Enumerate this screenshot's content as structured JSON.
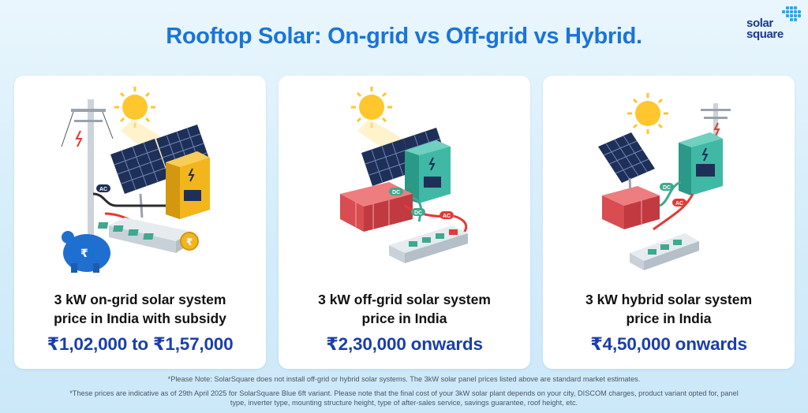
{
  "title": "Rooftop Solar: On-grid vs Off-grid vs Hybrid.",
  "logo": {
    "line1": "solar",
    "line2": "square"
  },
  "cards": [
    {
      "heading_line1": "3 kW on-grid solar system",
      "heading_line2": "price in India with subsidy",
      "price": "₹1,02,000 to ₹1,57,000",
      "labels": [
        "AC",
        "₹"
      ]
    },
    {
      "heading_line1": "3 kW off-grid solar system",
      "heading_line2": "price in India",
      "price": "₹2,30,000 onwards",
      "labels": [
        "DC",
        "DC",
        "AC"
      ]
    },
    {
      "heading_line1": "3 kW hybrid solar system",
      "heading_line2": "price in India",
      "price": "₹4,50,000 onwards",
      "labels": [
        "DC",
        "AC"
      ]
    }
  ],
  "notes": {
    "note1": "*Please Note: SolarSquare does not install off-grid or hybrid solar systems. The 3kW solar panel prices listed above are standard market estimates.",
    "note2": "*These prices are indicative as of 29th April 2025 for SolarSquare Blue 6ft variant. Please note that the final cost of your 3kW solar plant depends on your city, DISCOM charges, product variant opted for, panel type, inverter type, mounting structure height, type of after-sales service, savings guarantee, roof height, etc."
  },
  "colors": {
    "title": "#1a74d9",
    "price": "#1a3fa8",
    "inverter_ongrid": "#f2b51c",
    "inverter_offgrid": "#3fb9a5",
    "battery": "#e0545a"
  }
}
